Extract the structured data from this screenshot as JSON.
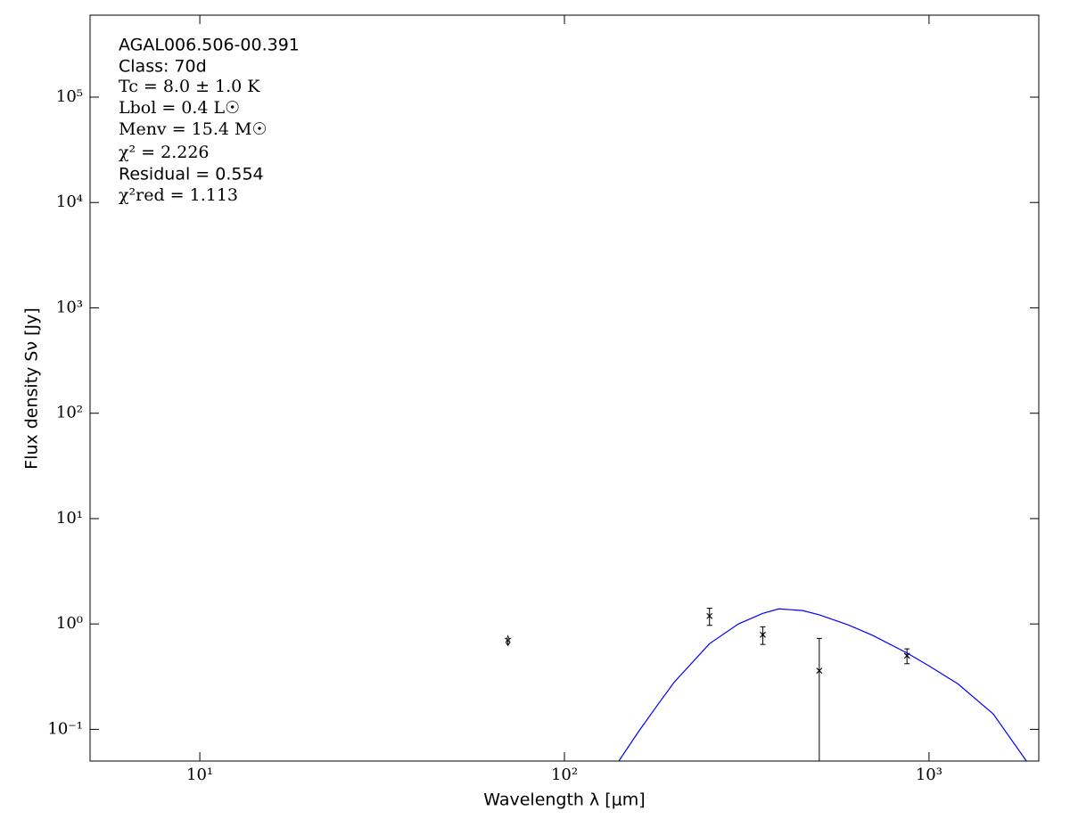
{
  "chart_data": {
    "type": "scatter",
    "xlabel": "Wavelength λ [μm]",
    "ylabel": "Flux density Sν [Jy]",
    "xscale": "log",
    "yscale": "log",
    "xlim": [
      5,
      2000
    ],
    "ylim": [
      0.05,
      600000
    ],
    "xticks": [
      {
        "value": 10,
        "label": "10¹"
      },
      {
        "value": 100,
        "label": "10²"
      },
      {
        "value": 1000,
        "label": "10³"
      }
    ],
    "yticks": [
      {
        "value": 0.1,
        "label": "10⁻¹"
      },
      {
        "value": 1,
        "label": "10⁰"
      },
      {
        "value": 10,
        "label": "10¹"
      },
      {
        "value": 100,
        "label": "10²"
      },
      {
        "value": 1000,
        "label": "10³"
      },
      {
        "value": 10000,
        "label": "10⁴"
      },
      {
        "value": 100000,
        "label": "10⁵"
      }
    ],
    "annotations": [
      "AGAL006.506-00.391",
      "Class: 70d",
      "Tc = 8.0 ± 1.0 K",
      "Lbol = 0.4 L☉",
      "Menv = 15.4 M☉",
      "χ² = 2.226",
      "Residual = 0.554",
      "χ²red = 1.113"
    ],
    "series": [
      {
        "type": "errorbar",
        "color": "#000000",
        "x": [
          250,
          350,
          500,
          870
        ],
        "values": [
          1.19,
          0.79,
          0.36,
          0.5
        ],
        "errors": [
          0.22,
          0.15,
          0.37,
          0.08
        ]
      },
      {
        "type": "upper_limit",
        "color": "#000000",
        "x": [
          70
        ],
        "values": [
          0.73
        ]
      },
      {
        "type": "line",
        "color": "#0000ff",
        "x": [
          141,
          160,
          180,
          200,
          250,
          300,
          350,
          387,
          450,
          500,
          600,
          700,
          870,
          1000,
          1200,
          1500,
          1850
        ],
        "values": [
          0.05,
          0.096,
          0.17,
          0.28,
          0.65,
          1.0,
          1.26,
          1.39,
          1.34,
          1.22,
          0.98,
          0.78,
          0.53,
          0.4,
          0.27,
          0.14,
          0.05
        ]
      }
    ]
  }
}
